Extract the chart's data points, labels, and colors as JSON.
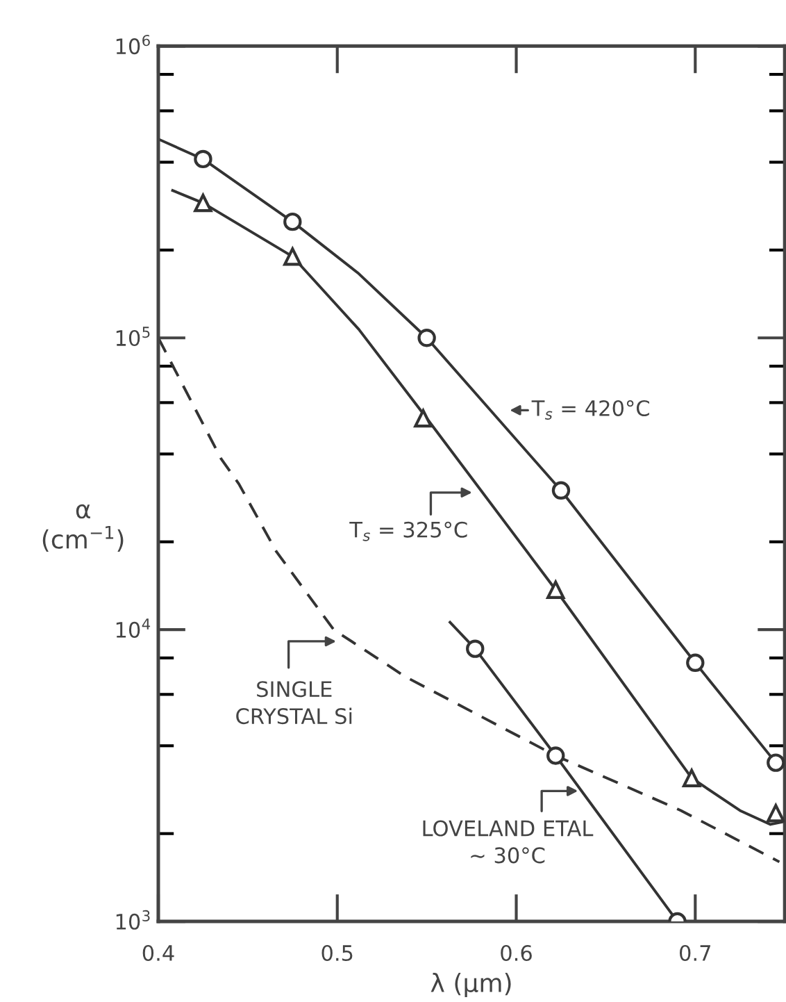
{
  "chart_data": {
    "type": "line",
    "xlabel": "λ (μm)",
    "ylabel": "α\n(cm$^{−1}$)",
    "log": "y",
    "grid": false,
    "xlim": [
      0.4,
      0.75
    ],
    "xticks": [
      0.4,
      0.5,
      0.6,
      0.7
    ],
    "ylim": [
      1000,
      1000000
    ],
    "yticks": [
      {
        "value": 1000,
        "label": "10$^{3}$"
      },
      {
        "value": 2000,
        "label": null
      },
      {
        "value": 4000,
        "label": null
      },
      {
        "value": 6000,
        "label": null
      },
      {
        "value": 8000,
        "label": null
      },
      {
        "value": 10000,
        "label": "10$^{4}$"
      },
      {
        "value": 20000,
        "label": null
      },
      {
        "value": 40000,
        "label": null
      },
      {
        "value": 60000,
        "label": null
      },
      {
        "value": 80000,
        "label": null
      },
      {
        "value": 100000,
        "label": "10$^{5}$"
      },
      {
        "value": 200000,
        "label": null
      },
      {
        "value": 400000,
        "label": null
      },
      {
        "value": 600000,
        "label": null
      },
      {
        "value": 800000,
        "label": null
      },
      {
        "value": 1000000,
        "label": "10$^{6}$"
      }
    ],
    "series": [
      {
        "color": "#333333",
        "line_style": "solid",
        "marker": "none",
        "x": [
          0.4,
          0.425,
          0.475,
          0.512,
          0.55,
          0.625,
          0.7,
          0.745
        ],
        "values": [
          480000,
          410000,
          250000,
          166000,
          100000,
          30000,
          7700,
          3500
        ]
      },
      {
        "type": "scatter",
        "color": "#333333",
        "marker": "circle",
        "x": [
          0.425,
          0.475,
          0.55,
          0.625,
          0.7,
          0.745
        ],
        "values": [
          410000,
          250000,
          100000,
          30000,
          7700,
          3500
        ]
      },
      {
        "color": "#333333",
        "line_style": "solid",
        "marker": "none",
        "x": [
          0.408,
          0.425,
          0.475,
          0.512,
          0.55,
          0.622,
          0.698,
          0.725,
          0.742,
          0.75
        ],
        "values": [
          320000,
          290000,
          190000,
          107000,
          53000,
          13700,
          3100,
          2400,
          2150,
          2200
        ]
      },
      {
        "type": "scatter",
        "color": "#333333",
        "marker": "triangle",
        "x": [
          0.425,
          0.475,
          0.548,
          0.622,
          0.698,
          0.745
        ],
        "values": [
          290000,
          190000,
          53000,
          13700,
          3100,
          2350
        ]
      },
      {
        "color": "#333333",
        "line_style": "dashed",
        "marker": "none",
        "x": [
          0.4,
          0.435,
          0.445,
          0.466,
          0.498,
          0.538,
          0.622,
          0.692,
          0.747
        ],
        "values": [
          100000,
          38600,
          31600,
          18500,
          10000,
          6900,
          3700,
          2400,
          1600
        ]
      },
      {
        "color": "#333333",
        "line_style": "solid",
        "marker": "none",
        "x": [
          0.563,
          0.577,
          0.622,
          0.69
        ],
        "values": [
          10600,
          8600,
          3700,
          1000
        ]
      },
      {
        "type": "scatter",
        "color": "#333333",
        "marker": "circle",
        "x": [
          0.577,
          0.622,
          0.69
        ],
        "values": [
          8600,
          3700,
          1000
        ]
      }
    ],
    "annotations": [
      "T$_{s}$ = 420°C",
      "T$_{s}$ = 325°C",
      "SINGLE\nCRYSTAL Si",
      "LOVELAND ETAL\n~ 30°C"
    ]
  }
}
